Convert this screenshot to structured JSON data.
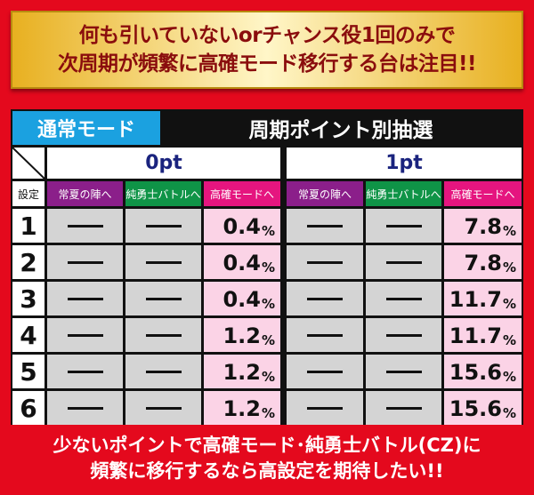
{
  "banner": {
    "line1": "何も引いていないorチャンス役1回のみで",
    "line2": "次周期が頻繁に高確モード移行する台は注目!!"
  },
  "table": {
    "mode_label": "通常モード",
    "title": "周期ポイント別抽選",
    "groups": [
      "0pt",
      "1pt"
    ],
    "setting_header": "設定",
    "subheaders": [
      "常夏の陣へ",
      "純勇士バトルへ",
      "高確モードへ"
    ],
    "rows": [
      {
        "setting": "1",
        "pt0": [
          "—",
          "—",
          "0.4"
        ],
        "pt1": [
          "—",
          "—",
          "7.8"
        ]
      },
      {
        "setting": "2",
        "pt0": [
          "—",
          "—",
          "0.4"
        ],
        "pt1": [
          "—",
          "—",
          "7.8"
        ]
      },
      {
        "setting": "3",
        "pt0": [
          "—",
          "—",
          "0.4"
        ],
        "pt1": [
          "—",
          "—",
          "11.7"
        ]
      },
      {
        "setting": "4",
        "pt0": [
          "—",
          "—",
          "1.2"
        ],
        "pt1": [
          "—",
          "—",
          "11.7"
        ]
      },
      {
        "setting": "5",
        "pt0": [
          "—",
          "—",
          "1.2"
        ],
        "pt1": [
          "—",
          "—",
          "15.6"
        ]
      },
      {
        "setting": "6",
        "pt0": [
          "—",
          "—",
          "1.2"
        ],
        "pt1": [
          "—",
          "—",
          "15.6"
        ]
      }
    ],
    "unit": "%"
  },
  "footer": {
    "line1": "少ないポイントで高確モード･純勇士バトル(CZ)に",
    "line2": "頻繁に移行するなら高設定を期待したい!!"
  }
}
